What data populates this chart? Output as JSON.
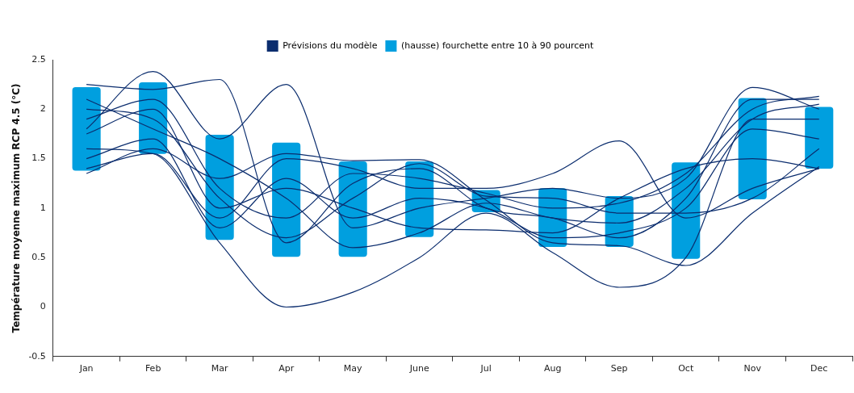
{
  "chart_data": {
    "type": "bar",
    "categories": [
      "Jan",
      "Feb",
      "Mar",
      "Apr",
      "May",
      "June",
      "Jul",
      "Aug",
      "Sep",
      "Oct",
      "Nov",
      "Dec"
    ],
    "ylabel": "Température moyenne maximum RCP 4.5 (°C)",
    "ylim": [
      -0.5,
      2.5
    ],
    "yticks": [
      -0.5,
      0,
      0.5,
      1,
      1.5,
      2,
      2.5
    ],
    "grid": false,
    "legend": "top",
    "marker": "none",
    "line_style": "solid",
    "series": [
      {
        "type": "line",
        "name": "Prévisions du modèle",
        "color": "#0b2d6e",
        "values": [
          2.25,
          2.2,
          2.3,
          0.65,
          1.25,
          1.4,
          1.0,
          0.9,
          0.7,
          1.1,
          2.1,
          2.1
        ]
      },
      {
        "type": "line",
        "color": "#0b2d6e",
        "values": [
          1.8,
          2.38,
          1.7,
          2.25,
          0.8,
          1.0,
          1.1,
          1.2,
          1.1,
          1.3,
          2.22,
          2.0
        ]
      },
      {
        "type": "line",
        "color": "#0b2d6e",
        "values": [
          1.6,
          1.55,
          0.65,
          0.0,
          0.15,
          0.5,
          0.95,
          0.55,
          0.2,
          0.5,
          1.9,
          1.9
        ]
      },
      {
        "type": "line",
        "color": "#0b2d6e",
        "values": [
          1.4,
          1.55,
          0.9,
          1.5,
          1.4,
          1.2,
          1.2,
          1.35,
          1.68,
          0.9,
          1.2,
          1.4
        ]
      },
      {
        "type": "line",
        "color": "#0b2d6e",
        "values": [
          1.35,
          1.6,
          1.3,
          1.55,
          1.48,
          1.49,
          1.08,
          0.65,
          0.62,
          0.42,
          0.95,
          1.42
        ]
      },
      {
        "type": "line",
        "color": "#0b2d6e",
        "values": [
          1.75,
          2.0,
          1.0,
          1.2,
          1.0,
          0.8,
          0.78,
          0.75,
          1.1,
          1.4,
          1.5,
          1.4
        ]
      },
      {
        "type": "line",
        "color": "#0b2d6e",
        "values": [
          2.1,
          1.8,
          1.5,
          1.1,
          0.6,
          0.75,
          1.05,
          0.9,
          0.85,
          1.2,
          1.9,
          2.05
        ]
      },
      {
        "type": "line",
        "color": "#0b2d6e",
        "values": [
          1.9,
          2.1,
          1.2,
          0.9,
          1.35,
          1.3,
          1.15,
          1.0,
          1.05,
          1.35,
          2.0,
          2.13
        ]
      },
      {
        "type": "line",
        "color": "#0b2d6e",
        "values": [
          1.5,
          1.7,
          0.8,
          1.3,
          0.9,
          1.1,
          1.0,
          0.7,
          0.75,
          1.0,
          1.8,
          1.7
        ]
      },
      {
        "type": "line",
        "color": "#0b2d6e",
        "values": [
          2.0,
          1.9,
          1.1,
          0.7,
          1.1,
          1.45,
          1.12,
          1.1,
          0.95,
          0.95,
          1.1,
          1.6
        ]
      },
      {
        "name": "(hausse) fourchette entre 10 à 90 pourcent",
        "color": "#009fdf",
        "base": [
          1.37,
          1.54,
          0.67,
          0.5,
          0.5,
          0.7,
          0.95,
          0.6,
          0.6,
          0.48,
          1.08,
          1.39
        ],
        "values": [
          0.86,
          0.74,
          1.08,
          1.17,
          0.98,
          0.78,
          0.24,
          0.61,
          0.53,
          0.99,
          1.04,
          0.64
        ]
      }
    ]
  }
}
